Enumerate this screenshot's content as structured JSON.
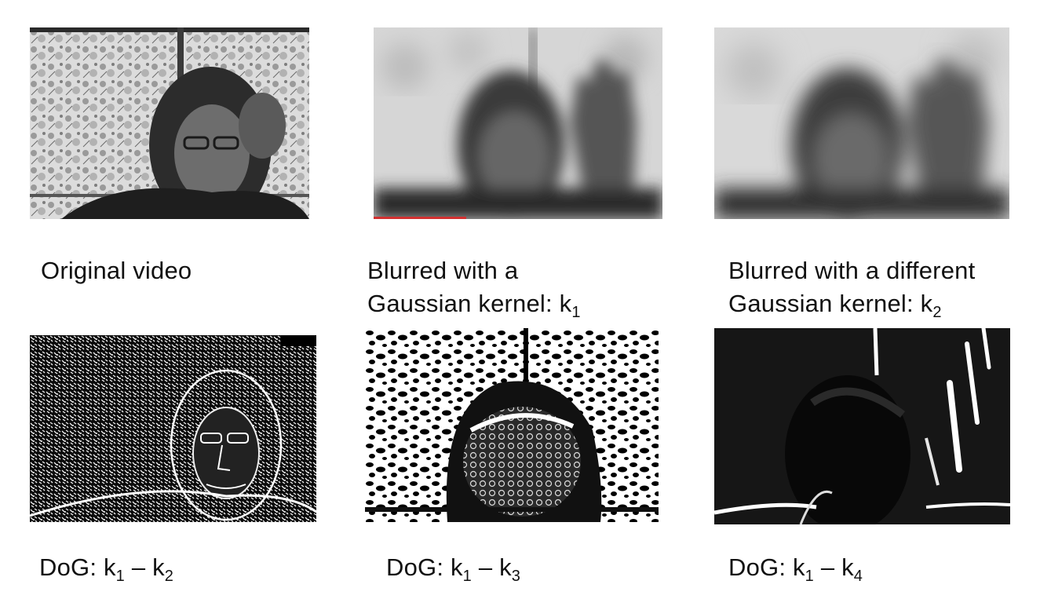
{
  "panels": {
    "original": {
      "caption": "Original video",
      "image": "grayscale webcam frame of a person with hand on forehead in front of a window with trees"
    },
    "blur_k1": {
      "caption_line1": "Blurred with a",
      "caption_line2_prefix": "Gaussian kernel: k",
      "caption_line2_sub": "1",
      "image": "blurred grayscale frame of a person waving"
    },
    "blur_k2": {
      "caption_line1": "Blurred with a different",
      "caption_line2_prefix": "Gaussian kernel: k",
      "caption_line2_sub": "2",
      "image": "more strongly blurred grayscale frame of a person waving"
    },
    "dog_k1_k2": {
      "caption_prefix": "DoG: k",
      "sub_a": "1",
      "minus": " – k",
      "sub_b": "2",
      "image": "fine-detail difference-of-gaussians edge map"
    },
    "dog_k1_k3": {
      "caption_prefix": "DoG: k",
      "sub_a": "1",
      "minus": " – k",
      "sub_b": "3",
      "image": "medium-scale difference-of-gaussians blob map"
    },
    "dog_k1_k4": {
      "caption_prefix": "DoG: k",
      "sub_a": "1",
      "minus": " – k",
      "sub_b": "4",
      "image": "coarse difference-of-gaussians map highlighting fingers"
    }
  }
}
